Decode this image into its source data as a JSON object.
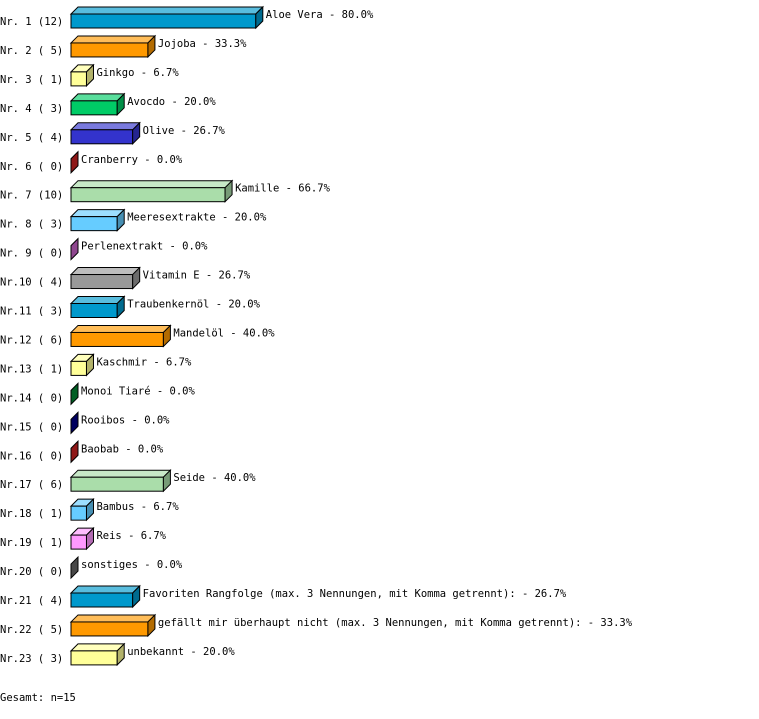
{
  "chart_data": {
    "type": "bar",
    "orientation": "horizontal",
    "style": "3d",
    "xlim": [
      0,
      100
    ],
    "unit": "%",
    "categories": [
      "Nr. 1",
      "Nr. 2",
      "Nr. 3",
      "Nr. 4",
      "Nr. 5",
      "Nr. 6",
      "Nr. 7",
      "Nr. 8",
      "Nr. 9",
      "Nr.10",
      "Nr.11",
      "Nr.12",
      "Nr.13",
      "Nr.14",
      "Nr.15",
      "Nr.16",
      "Nr.17",
      "Nr.18",
      "Nr.19",
      "Nr.20",
      "Nr.21",
      "Nr.22",
      "Nr.23"
    ],
    "counts": [
      12,
      5,
      1,
      3,
      4,
      0,
      10,
      3,
      0,
      4,
      3,
      6,
      1,
      0,
      0,
      0,
      6,
      1,
      1,
      0,
      4,
      5,
      3
    ],
    "names": [
      "Aloe Vera",
      "Jojoba",
      "Ginkgo",
      "Avocdo",
      "Olive",
      "Cranberry",
      "Kamille",
      "Meeresextrakte",
      "Perlenextrakt",
      "Vitamin E",
      "Traubenkernöl",
      "Mandelöl",
      "Kaschmir",
      "Monoi Tiaré",
      "Rooibos",
      "Baobab",
      "Seide",
      "Bambus",
      "Reis",
      "sonstiges",
      "Favoriten Rangfolge (max. 3 Nennungen, mit Komma getrennt):",
      "gefällt mir überhaupt nicht (max. 3 Nennungen, mit Komma getrennt):",
      "unbekannt"
    ],
    "values": [
      80.0,
      33.3,
      6.7,
      20.0,
      26.7,
      0.0,
      66.7,
      20.0,
      0.0,
      26.7,
      20.0,
      40.0,
      6.7,
      0.0,
      0.0,
      0.0,
      40.0,
      6.7,
      6.7,
      0.0,
      26.7,
      33.3,
      20.0
    ],
    "colors": [
      "#0099cc",
      "#ff9900",
      "#ffff99",
      "#00cc66",
      "#3333cc",
      "#cc2222",
      "#aaddaa",
      "#66ccff",
      "#cc66cc",
      "#999999",
      "#0099cc",
      "#ff9900",
      "#ffff99",
      "#008833",
      "#000088",
      "#cc2222",
      "#aaddaa",
      "#66ccff",
      "#ff99ff",
      "#666666",
      "#0099cc",
      "#ff9900",
      "#ffff99"
    ],
    "footer": "Gesamt: n=15"
  }
}
